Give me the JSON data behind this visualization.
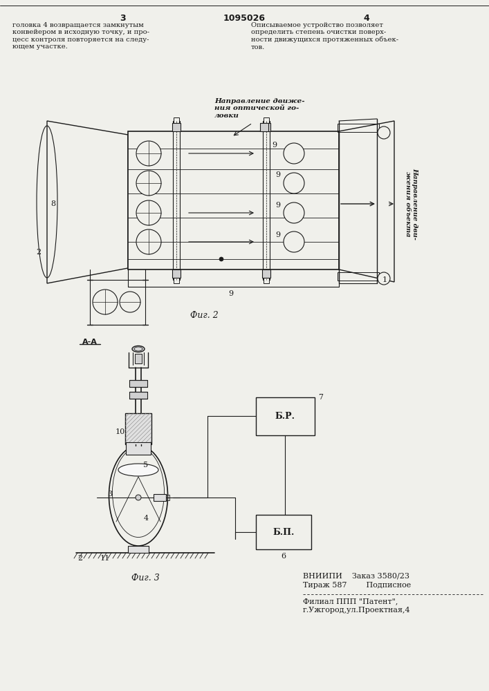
{
  "background_color": "#f0f0eb",
  "header": {
    "left_num": "3",
    "center_num": "1095026",
    "right_num": "4"
  },
  "text_left": "головка 4 возвращается замкнутым\nконвейером в исходную точку, и про-\nцесс контроля повторяется на следу-\nющем участке.",
  "text_right": "Описываемое устройство позволяет\nопределить степень очистки поверх-\nности движущихся протяженных объек-\nтов.",
  "fig2_caption": "Фиг. 2",
  "fig3_caption": "Фиг. 3",
  "footer_line1": "ВНИИПИ    Заказ 3580/23",
  "footer_line2": "Тираж 587        Подписное",
  "footer_line3": "Филиал ППП \"Патент\",",
  "footer_line4": "г.Ужгород,ул.Проектная,4",
  "line_color": "#1a1a1a",
  "text_color": "#1a1a1a"
}
